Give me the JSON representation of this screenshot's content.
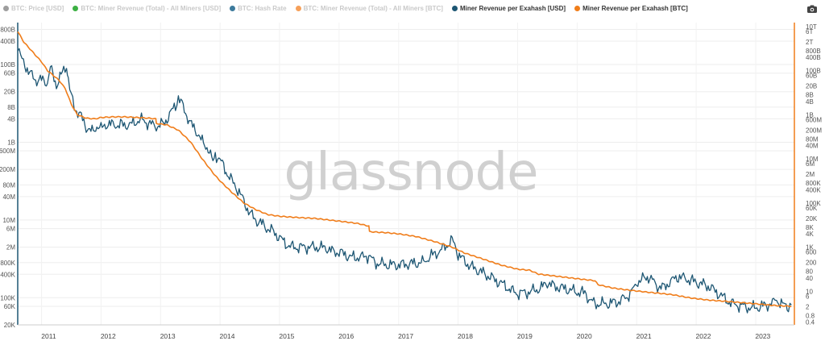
{
  "legend": [
    {
      "label": "BTC: Price [USD]",
      "color": "#9e9e9e",
      "active": false
    },
    {
      "label": "BTC: Miner Revenue (Total) - All Miners [USD]",
      "color": "#3cb043",
      "active": false
    },
    {
      "label": "BTC: Hash Rate",
      "color": "#3d7a9c",
      "active": false
    },
    {
      "label": "BTC: Miner Revenue (Total) - All Miners [BTC]",
      "color": "#f6a05a",
      "active": false
    },
    {
      "label": "Miner Revenue per Exahash [USD]",
      "color": "#1d5673",
      "active": true
    },
    {
      "label": "Miner Revenue per Exahash [BTC]",
      "color": "#f07d1a",
      "active": true
    }
  ],
  "toolbar": {
    "screenshot_icon": "camera-icon"
  },
  "watermark": "glassnode",
  "chart_data": {
    "type": "line",
    "scale": "log",
    "grid": true,
    "legend_position": "top-left",
    "x_ticks": [
      "2011",
      "2012",
      "2013",
      "2014",
      "2015",
      "2016",
      "2017",
      "2018",
      "2019",
      "2020",
      "2021",
      "2022",
      "2023"
    ],
    "xlim": [
      2010.6,
      2023.65
    ],
    "left_axis": {
      "ticks": [
        {
          "label": "800B",
          "value": 800000000000
        },
        {
          "label": "400B",
          "value": 400000000000
        },
        {
          "label": "100B",
          "value": 100000000000
        },
        {
          "label": "60B",
          "value": 60000000000
        },
        {
          "label": "20B",
          "value": 20000000000
        },
        {
          "label": "8B",
          "value": 8000000000
        },
        {
          "label": "4B",
          "value": 4000000000
        },
        {
          "label": "1B",
          "value": 1000000000
        },
        {
          "label": "600M",
          "value": 600000000
        },
        {
          "label": "200M",
          "value": 200000000
        },
        {
          "label": "80M",
          "value": 80000000
        },
        {
          "label": "40M",
          "value": 40000000
        },
        {
          "label": "10M",
          "value": 10000000
        },
        {
          "label": "6M",
          "value": 6000000
        },
        {
          "label": "2M",
          "value": 2000000
        },
        {
          "label": "800K",
          "value": 800000
        },
        {
          "label": "400K",
          "value": 400000
        },
        {
          "label": "100K",
          "value": 100000
        },
        {
          "label": "60K",
          "value": 60000
        },
        {
          "label": "20K",
          "value": 20000
        }
      ],
      "ylim": [
        20000,
        1200000000000
      ]
    },
    "right_axis": {
      "ticks": [
        {
          "label": "10T",
          "value": 10000000000000
        },
        {
          "label": "6T",
          "value": 6000000000000
        },
        {
          "label": "2T",
          "value": 2000000000000
        },
        {
          "label": "800B",
          "value": 800000000000
        },
        {
          "label": "400B",
          "value": 400000000000
        },
        {
          "label": "100B",
          "value": 100000000000
        },
        {
          "label": "60B",
          "value": 60000000000
        },
        {
          "label": "20B",
          "value": 20000000000
        },
        {
          "label": "8B",
          "value": 8000000000
        },
        {
          "label": "4B",
          "value": 4000000000
        },
        {
          "label": "1B",
          "value": 1000000000
        },
        {
          "label": "600M",
          "value": 600000000
        },
        {
          "label": "200M",
          "value": 200000000
        },
        {
          "label": "80M",
          "value": 80000000
        },
        {
          "label": "40M",
          "value": 40000000
        },
        {
          "label": "10M",
          "value": 10000000
        },
        {
          "label": "6M",
          "value": 6000000
        },
        {
          "label": "2M",
          "value": 2000000
        },
        {
          "label": "800K",
          "value": 800000
        },
        {
          "label": "400K",
          "value": 400000
        },
        {
          "label": "100K",
          "value": 100000
        },
        {
          "label": "60K",
          "value": 60000
        },
        {
          "label": "20K",
          "value": 20000
        },
        {
          "label": "8K",
          "value": 8000
        },
        {
          "label": "4K",
          "value": 4000
        },
        {
          "label": "1K",
          "value": 1000
        },
        {
          "label": "600",
          "value": 600
        },
        {
          "label": "200",
          "value": 200
        },
        {
          "label": "80",
          "value": 80
        },
        {
          "label": "40",
          "value": 40
        },
        {
          "label": "10",
          "value": 10
        },
        {
          "label": "6",
          "value": 6
        },
        {
          "label": "2",
          "value": 2
        },
        {
          "label": "0.8",
          "value": 0.8
        },
        {
          "label": "0.4",
          "value": 0.4
        }
      ],
      "ylim": [
        0.3,
        15000000000000
      ]
    },
    "series": [
      {
        "name": "Miner Revenue per Exahash [USD]",
        "axis": "left",
        "color": "#1d5673",
        "x": [
          2010.6,
          2010.65,
          2010.72,
          2010.8,
          2010.9,
          2011.0,
          2011.1,
          2011.15,
          2011.25,
          2011.35,
          2011.42,
          2011.45,
          2011.5,
          2011.55,
          2011.65,
          2011.75,
          2011.85,
          2011.95,
          2012.0,
          2012.1,
          2012.2,
          2012.35,
          2012.5,
          2012.6,
          2012.7,
          2012.8,
          2012.95,
          2013.05,
          2013.15,
          2013.25,
          2013.3,
          2013.4,
          2013.5,
          2013.6,
          2013.7,
          2013.8,
          2013.88,
          2013.92,
          2014.0,
          2014.1,
          2014.2,
          2014.3,
          2014.4,
          2014.5,
          2014.6,
          2014.7,
          2014.8,
          2014.9,
          2015.0,
          2015.1,
          2015.2,
          2015.4,
          2015.6,
          2015.8,
          2015.9,
          2016.0,
          2016.2,
          2016.35,
          2016.5,
          2016.6,
          2016.8,
          2017.0,
          2017.2,
          2017.4,
          2017.55,
          2017.7,
          2017.8,
          2017.9,
          2017.96,
          2018.0,
          2018.1,
          2018.2,
          2018.4,
          2018.6,
          2018.8,
          2018.9,
          2019.0,
          2019.2,
          2019.4,
          2019.5,
          2019.6,
          2019.8,
          2020.0,
          2020.15,
          2020.2,
          2020.3,
          2020.5,
          2020.7,
          2020.85,
          2020.95,
          2021.0,
          2021.1,
          2021.2,
          2021.35,
          2021.45,
          2021.55,
          2021.7,
          2021.85,
          2022.0,
          2022.2,
          2022.4,
          2022.5,
          2022.6,
          2022.8,
          2022.9,
          2023.0,
          2023.1,
          2023.2,
          2023.3,
          2023.35,
          2023.45,
          2023.55,
          2023.6
        ],
        "values": [
          300000000000,
          150000000000,
          100000000000,
          60000000000,
          40000000000,
          40000000000,
          35000000000,
          80000000000,
          30000000000,
          60000000000,
          100000000000,
          40000000000,
          15000000000,
          8000000000,
          5000000000,
          2500000000,
          1800000000,
          2800000000,
          2200000000,
          3000000000,
          2800000000,
          2800000000,
          2800000000,
          3500000000,
          3800000000,
          3000000000,
          2600000000,
          3000000000,
          5000000000,
          9000000000,
          14000000000,
          7000000000,
          3000000000,
          2000000000,
          1000000000,
          700000000,
          300000000,
          500000000,
          350000000,
          180000000,
          100000000,
          60000000,
          30000000,
          15000000,
          10000000,
          8000000,
          6000000,
          5000000,
          3500000,
          2500000,
          2000000,
          2000000,
          2000000,
          1900000,
          1500000,
          1500000,
          1100000,
          1100000,
          1200000,
          800000,
          700000,
          700000,
          750000,
          800000,
          1200000,
          1600000,
          2200000,
          3000000,
          2000000,
          1300000,
          900000,
          650000,
          450000,
          300000,
          200000,
          150000,
          130000,
          140000,
          180000,
          250000,
          200000,
          170000,
          140000,
          130000,
          90000,
          70000,
          70000,
          80000,
          110000,
          170000,
          250000,
          300000,
          350000,
          200000,
          180000,
          250000,
          350000,
          300000,
          250000,
          200000,
          120000,
          90000,
          70000,
          60000,
          55000,
          55000,
          60000,
          65000,
          75000,
          90000,
          65000,
          60000,
          65000
        ]
      },
      {
        "name": "Miner Revenue per Exahash [BTC]",
        "axis": "right",
        "color": "#f07d1a",
        "x": [
          2010.6,
          2010.7,
          2010.85,
          2011.0,
          2011.1,
          2011.2,
          2011.3,
          2011.4,
          2011.5,
          2011.6,
          2011.75,
          2011.9,
          2012.0,
          2012.2,
          2012.4,
          2012.6,
          2012.8,
          2012.92,
          2012.93,
          2013.1,
          2013.3,
          2013.5,
          2013.7,
          2013.9,
          2014.0,
          2014.2,
          2014.4,
          2014.6,
          2014.8,
          2015.0,
          2015.3,
          2015.6,
          2016.0,
          2016.3,
          2016.5,
          2016.51,
          2016.8,
          2017.0,
          2017.3,
          2017.6,
          2017.9,
          2018.1,
          2018.4,
          2018.7,
          2019.0,
          2019.2,
          2019.35,
          2019.6,
          2019.9,
          2020.3,
          2020.35,
          2020.6,
          2020.9,
          2021.2,
          2021.4,
          2021.6,
          2021.9,
          2022.2,
          2022.5,
          2022.8,
          2023.0,
          2023.2,
          2023.4,
          2023.6
        ],
        "values": [
          6000000000000,
          2000000000000,
          700000000000,
          250000000000,
          100000000000,
          60000000000,
          35000000000,
          15000000000,
          3000000000,
          1000000000,
          700000000,
          650000000,
          750000000,
          800000000,
          800000000,
          750000000,
          700000000,
          650000000,
          400000000,
          350000000,
          200000000,
          60000000,
          10000000,
          2000000,
          1000000,
          300000,
          100000,
          50000,
          30000,
          25000,
          22000,
          20000,
          15000,
          12000,
          9000,
          5000,
          4500,
          4000,
          3000,
          1800,
          1000,
          550,
          300,
          160,
          100,
          90,
          60,
          50,
          40,
          30,
          20,
          14,
          11,
          9,
          8,
          7,
          5,
          4,
          3.5,
          3,
          2.7,
          2.4,
          2.2,
          2.1
        ]
      }
    ]
  }
}
